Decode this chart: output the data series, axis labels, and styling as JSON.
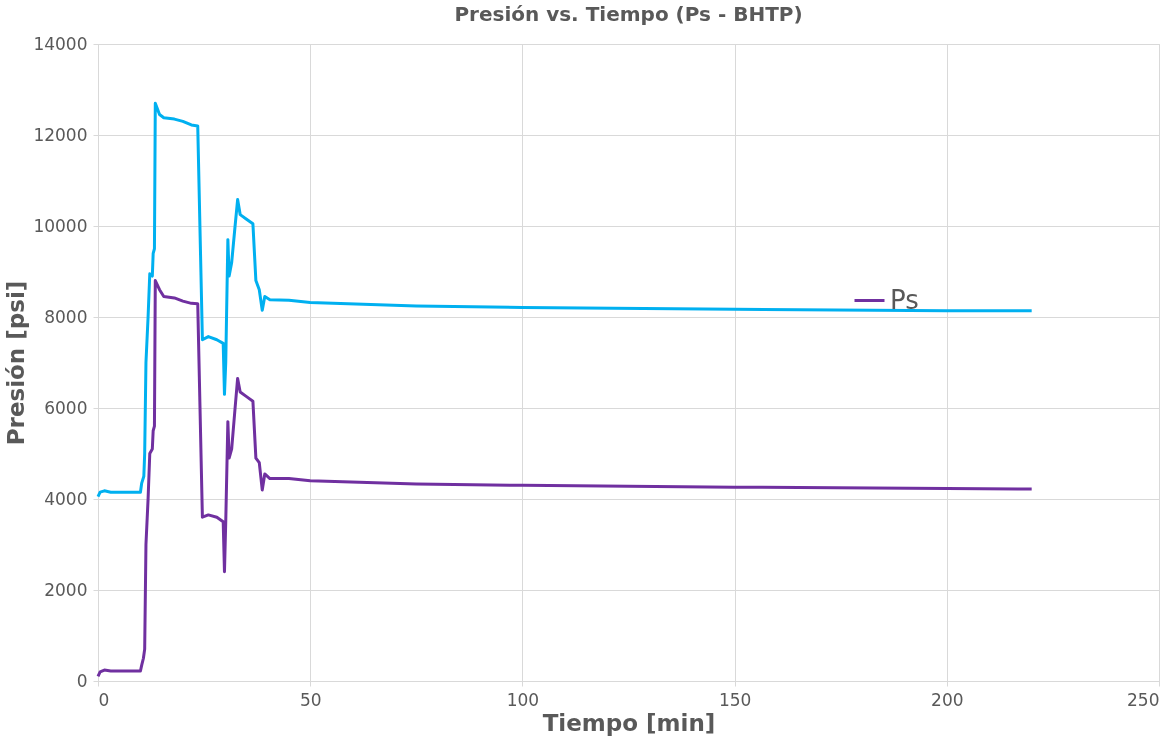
{
  "chart_data": {
    "type": "line",
    "title": "Presión vs. Tiempo (Ps - BHTP)",
    "xlabel": "Tiempo [min]",
    "ylabel": "Presión [psi]",
    "xlim": [
      0,
      250
    ],
    "xticks": [
      0,
      50,
      100,
      150,
      200,
      250
    ],
    "ylim": [
      0,
      14000
    ],
    "yticks": [
      0,
      2000,
      4000,
      6000,
      8000,
      10000,
      12000,
      14000
    ],
    "grid": true,
    "legend": "top right",
    "marker": "none",
    "line_style": "solid",
    "series": [
      {
        "color": "#00b0f0",
        "x": [
          0,
          0.5,
          1.5,
          3,
          10,
          10.3,
          10.8,
          11,
          11.3,
          11.8,
          12.2,
          12.8,
          13,
          13.3,
          13.5,
          14.5,
          15.5,
          18,
          20,
          22,
          23.5,
          24.6,
          26,
          28,
          29.5,
          29.8,
          30.1,
          30.6,
          30.9,
          31.5,
          32.3,
          32.9,
          33.5,
          35,
          36.5,
          37.2,
          38,
          38.7,
          39.3,
          40.5,
          45,
          50,
          75,
          100,
          150,
          200,
          220
        ],
        "values": [
          4050,
          4150,
          4180,
          4150,
          4150,
          4350,
          4500,
          5000,
          7000,
          8000,
          8950,
          8900,
          9400,
          9500,
          12700,
          12450,
          12380,
          12350,
          12300,
          12220,
          12200,
          7500,
          7570,
          7500,
          7420,
          6300,
          7000,
          9700,
          8900,
          9200,
          10000,
          10580,
          10250,
          10150,
          10050,
          8800,
          8600,
          8150,
          8450,
          8380,
          8370,
          8320,
          8240,
          8210,
          8170,
          8140,
          8140
        ]
      },
      {
        "name": "Ps",
        "color": "#7030a0",
        "x": [
          0,
          0.5,
          1.5,
          3,
          10,
          10.3,
          10.7,
          11,
          11.3,
          11.8,
          12.2,
          12.8,
          13,
          13.3,
          13.5,
          14.5,
          15.5,
          18,
          20,
          22,
          23.5,
          24.6,
          26,
          28,
          29.5,
          29.8,
          30.1,
          30.6,
          30.9,
          31.5,
          32.3,
          32.9,
          33.5,
          35,
          36.5,
          37.2,
          38,
          38.7,
          39.3,
          40.5,
          45,
          50,
          75,
          100,
          150,
          200,
          220
        ],
        "values": [
          100,
          200,
          240,
          220,
          220,
          350,
          500,
          700,
          3000,
          4000,
          5000,
          5100,
          5500,
          5600,
          8800,
          8600,
          8450,
          8420,
          8350,
          8300,
          8290,
          3600,
          3650,
          3600,
          3500,
          2400,
          3500,
          5700,
          4900,
          5100,
          6000,
          6650,
          6350,
          6250,
          6150,
          4900,
          4800,
          4200,
          4550,
          4450,
          4450,
          4400,
          4330,
          4300,
          4260,
          4230,
          4220
        ]
      }
    ]
  }
}
